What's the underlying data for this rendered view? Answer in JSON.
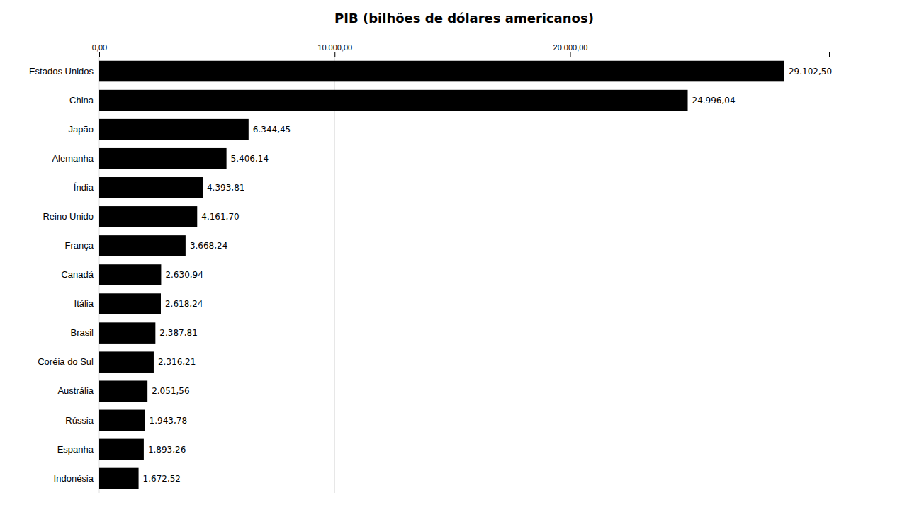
{
  "chart_data": {
    "type": "bar",
    "orientation": "horizontal",
    "title": "PIB (bilhões de dólares americanos)",
    "categories": [
      "Estados Unidos",
      "China",
      "Japão",
      "Alemanha",
      "Índia",
      "Reino Unido",
      "França",
      "Canadá",
      "Itália",
      "Brasil",
      "Coréia do Sul",
      "Austrália",
      "Rússia",
      "Espanha",
      "Indonésia"
    ],
    "values": [
      29102.5,
      24996.04,
      6344.45,
      5406.14,
      4393.81,
      4161.7,
      3668.24,
      2630.94,
      2618.24,
      2387.81,
      2316.21,
      2051.56,
      1943.78,
      1893.26,
      1672.52
    ],
    "value_labels": [
      "29.102,50",
      "24.996,04",
      "6.344,45",
      "5.406,14",
      "4.393,81",
      "4.161,70",
      "3.668,24",
      "2.630,94",
      "2.618,24",
      "2.387,81",
      "2.316,21",
      "2.051,56",
      "1.943,78",
      "1.893,26",
      "1.672,52"
    ],
    "data_labels": true,
    "color": "#000000",
    "xlim": [
      0,
      31000
    ],
    "xticks": [
      {
        "value": 0,
        "label": "0,00"
      },
      {
        "value": 10000,
        "label": "10.000,00"
      },
      {
        "value": 20000,
        "label": "20.000,00"
      }
    ],
    "grid": true
  }
}
